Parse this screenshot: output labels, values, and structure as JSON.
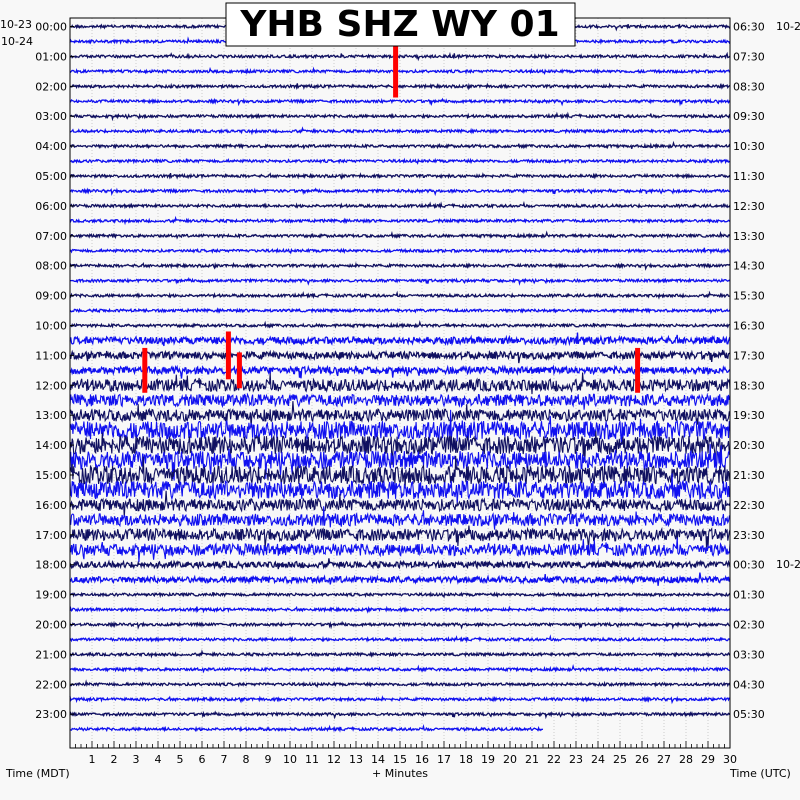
{
  "title": "YHB SHZ WY 01",
  "left_dates": {
    "top": "10-23",
    "second": "10-24"
  },
  "right_dates": {
    "top": "10-2",
    "bottom": "10-2"
  },
  "xlabel_left": "Time (MDT)",
  "xlabel_center": "+ Minutes",
  "xlabel_right": "Time (UTC)",
  "colors": {
    "trace_dark": "#101060",
    "trace_blue": "#1010f0",
    "event": "#ff0000",
    "background": "#f8f8f8",
    "axis": "#000000"
  },
  "chart_data": {
    "type": "line",
    "title": "YHB SHZ WY 01",
    "xlabel": "+ Minutes",
    "x_range": [
      0,
      30
    ],
    "x_ticks": [
      "1",
      "2",
      "3",
      "4",
      "5",
      "6",
      "7",
      "8",
      "9",
      "10",
      "11",
      "12",
      "13",
      "14",
      "15",
      "16",
      "17",
      "18",
      "19",
      "20",
      "21",
      "22",
      "23",
      "24",
      "25",
      "26",
      "27",
      "28",
      "29",
      "30"
    ],
    "left_hour_labels": [
      "00:00",
      "01:00",
      "02:00",
      "03:00",
      "04:00",
      "05:00",
      "06:00",
      "07:00",
      "08:00",
      "09:00",
      "10:00",
      "11:00",
      "12:00",
      "13:00",
      "14:00",
      "15:00",
      "16:00",
      "17:00",
      "18:00",
      "19:00",
      "20:00",
      "21:00",
      "22:00",
      "23:00"
    ],
    "right_hour_labels": [
      "06:30",
      "07:30",
      "08:30",
      "09:30",
      "10:30",
      "11:30",
      "12:30",
      "13:30",
      "14:30",
      "15:30",
      "16:30",
      "17:30",
      "18:30",
      "19:30",
      "20:30",
      "21:30",
      "22:30",
      "23:30",
      "00:30",
      "01:30",
      "02:30",
      "03:30",
      "04:30",
      "05:30"
    ],
    "trace_rows": 48,
    "grid": true,
    "events": [
      {
        "row": 3,
        "minute": 14.8,
        "amplitude_rows": 3.5
      },
      {
        "row": 23,
        "minute": 3.4,
        "amplitude_rows": 3.0
      },
      {
        "row": 22,
        "minute": 7.2,
        "amplitude_rows": 3.2
      },
      {
        "row": 23,
        "minute": 7.7,
        "amplitude_rows": 2.4
      },
      {
        "row": 23,
        "minute": 25.8,
        "amplitude_rows": 3.0
      }
    ]
  }
}
